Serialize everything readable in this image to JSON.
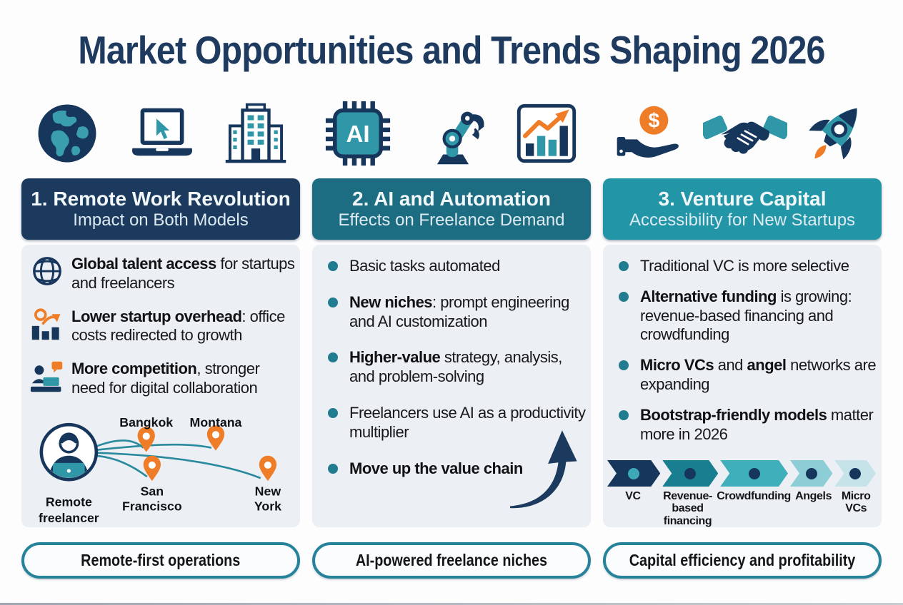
{
  "title": "Market Opportunities and Trends Shaping 2026",
  "icon_row": {
    "col1": [
      "globe-icon",
      "laptop-cursor-icon",
      "office-building-icon"
    ],
    "col2": [
      "ai-chip-icon",
      "robot-arm-icon",
      "growth-chart-icon"
    ],
    "col3": [
      "dollar-hand-icon",
      "handshake-icon",
      "rocket-icon"
    ]
  },
  "icon_text": {
    "ai_chip_label": "AI",
    "dollar_symbol": "$"
  },
  "columns": [
    {
      "header_line1": "1. Remote Work Revolution",
      "header_line2": "Impact on Both Models",
      "items": [
        {
          "icon": "globe-grid-icon",
          "segments": [
            {
              "t": "Global talent access",
              "b": true
            },
            {
              "t": " for startups and freelancers",
              "b": false
            }
          ]
        },
        {
          "icon": "bar-growth-icon",
          "segments": [
            {
              "t": "Lower startup overhead",
              "b": true
            },
            {
              "t": ": office costs redirected to growth",
              "b": false
            }
          ]
        },
        {
          "icon": "collaboration-icon",
          "segments": [
            {
              "t": "More competition",
              "b": true
            },
            {
              "t": ", stronger need for digital collaboration",
              "b": false
            }
          ]
        }
      ],
      "network": {
        "person_label_lines": [
          "Remote",
          "freelancer"
        ],
        "locations": [
          {
            "lines": [
              "Bangkok"
            ]
          },
          {
            "lines": [
              "Montana"
            ]
          },
          {
            "lines": [
              "San",
              "Francisco"
            ]
          },
          {
            "lines": [
              "New",
              "York"
            ]
          }
        ]
      },
      "pill": "Remote-first operations"
    },
    {
      "header_line1": "2. AI and Automation",
      "header_line2": "Effects on Freelance Demand",
      "bullets": [
        {
          "segments": [
            {
              "t": "Basic tasks automated",
              "b": false
            }
          ]
        },
        {
          "segments": [
            {
              "t": "New niches",
              "b": true
            },
            {
              "t": ": prompt engineering and AI customization",
              "b": false
            }
          ]
        },
        {
          "segments": [
            {
              "t": "Higher-value",
              "b": true
            },
            {
              "t": " strategy, analysis, and problem-solving",
              "b": false
            }
          ]
        },
        {
          "segments": [
            {
              "t": "Freelancers use AI as a productivity multiplier",
              "b": false
            }
          ]
        },
        {
          "segments": [
            {
              "t": "Move up the value chain",
              "b": true
            }
          ]
        }
      ],
      "pill": "AI-powered freelance niches"
    },
    {
      "header_line1": "3. Venture Capital",
      "header_line2": "Accessibility for New Startups",
      "bullets": [
        {
          "segments": [
            {
              "t": "Traditional VC is more selective",
              "b": false
            }
          ]
        },
        {
          "segments": [
            {
              "t": "Alternative funding",
              "b": true
            },
            {
              "t": " is growing: revenue-based financing and crowdfunding",
              "b": false
            }
          ]
        },
        {
          "segments": [
            {
              "t": "Micro VCs",
              "b": true
            },
            {
              "t": " and ",
              "b": false
            },
            {
              "t": "angel",
              "b": true
            },
            {
              "t": " networks are expanding",
              "b": false
            }
          ]
        },
        {
          "segments": [
            {
              "t": "Bootstrap-friendly models",
              "b": true
            },
            {
              "t": " matter more in 2026",
              "b": false
            }
          ]
        }
      ],
      "funding_stages": [
        {
          "label_lines": [
            "VC"
          ],
          "color": "#16365c",
          "dot": "#3da8b8"
        },
        {
          "label_lines": [
            "Revenue-",
            "based",
            "financing"
          ],
          "color": "#1a7e91",
          "dot": "#16365c"
        },
        {
          "label_lines": [
            "Crowdfunding"
          ],
          "color": "#3fafbc",
          "dot": "#16365c"
        },
        {
          "label_lines": [
            "Angels"
          ],
          "color": "#8ccdd6",
          "dot": "#16365c"
        },
        {
          "label_lines": [
            "Micro",
            "VCs"
          ],
          "color": "#c6e3e9",
          "dot": "#16365c"
        }
      ],
      "pill": "Capital efficiency and profitability"
    }
  ],
  "colors": {
    "navy": "#16365c",
    "header1_bg": "#1b3a5e",
    "header2_bg": "#1d6d82",
    "header3_bg": "#2296a7",
    "teal": "#2f97a8",
    "orange": "#ef7d28",
    "card_bg": "#ecf0f4",
    "title_text": "#1e3a5f",
    "pill_border": "#27839a",
    "bullet_dot": "#217c90"
  }
}
